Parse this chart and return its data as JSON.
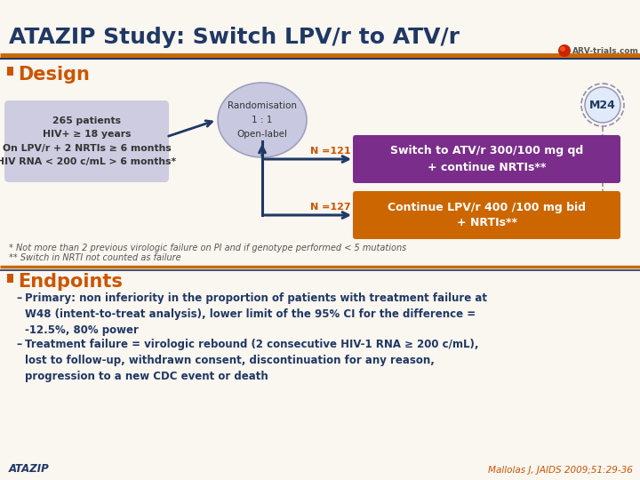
{
  "title": "ATAZIP Study: Switch LPV/r to ATV/r",
  "title_color": "#1F3864",
  "title_fontsize": 18,
  "bg_color": "#FAF6F0",
  "section_bullet_color": "#CC5500",
  "design_label": "Design",
  "design_label_color": "#CC5500",
  "design_label_fontsize": 15,
  "endpoints_label": "Endpoints",
  "endpoints_label_color": "#CC5500",
  "endpoints_label_fontsize": 15,
  "rand_box_text": "Randomisation\n1 : 1\nOpen-label",
  "rand_box_color": "#C8C8E0",
  "rand_box_text_color": "#333333",
  "patient_box_text": "265 patients\nHIV+ ≥ 18 years\nOn LPV/r + 2 NRTIs ≥ 6 months\nHIV RNA < 200 c/mL > 6 months*",
  "patient_box_color": "#C8C8E0",
  "patient_box_text_color": "#333333",
  "n121_text": "N =121",
  "n121_color": "#CC5500",
  "n127_text": "N =127",
  "n127_color": "#CC5500",
  "upper_arm_text": "Switch to ATV/r 300/100 mg qd\n+ continue NRTIs**",
  "upper_arm_color": "#7B2D8B",
  "upper_arm_text_color": "#FFFFFF",
  "lower_arm_text": "Continue LPV/r 400 /100 mg bid\n+ NRTIs**",
  "lower_arm_color": "#CC6600",
  "lower_arm_text_color": "#FFFFFF",
  "m24_text": "M24",
  "m24_color": "#1F3864",
  "m24_circle_color": "#E0EAFA",
  "footnote1": "* Not more than 2 previous virologic failure on PI and if genotype performed < 5 mutations",
  "footnote2": "** Switch in NRTI not counted as failure",
  "footnote_color": "#555555",
  "footnote_fontsize": 7.0,
  "primary_bullet": "Primary: non inferiority in the proportion of patients with treatment failure at\nW48 (intent-to-treat analysis), lower limit of the 95% CI for the difference =\n-12.5%, 80% power",
  "secondary_bullet": "Treatment failure = virologic rebound (2 consecutive HIV-1 RNA ≥ 200 c/mL),\nlost to follow-up, withdrawn consent, discontinuation for any reason,\nprogression to a new CDC event or death",
  "bullet_text_color": "#1F3864",
  "bullet_fontsize": 8.5,
  "atazip_label": "ATAZIP",
  "atazip_color": "#1F3864",
  "citation": "Mallolas J, JAIDS 2009;51:29-36",
  "citation_color": "#CC5500",
  "orange_line_color": "#CC6600",
  "blue_line_color": "#1F3864",
  "arrow_color": "#1F3864"
}
